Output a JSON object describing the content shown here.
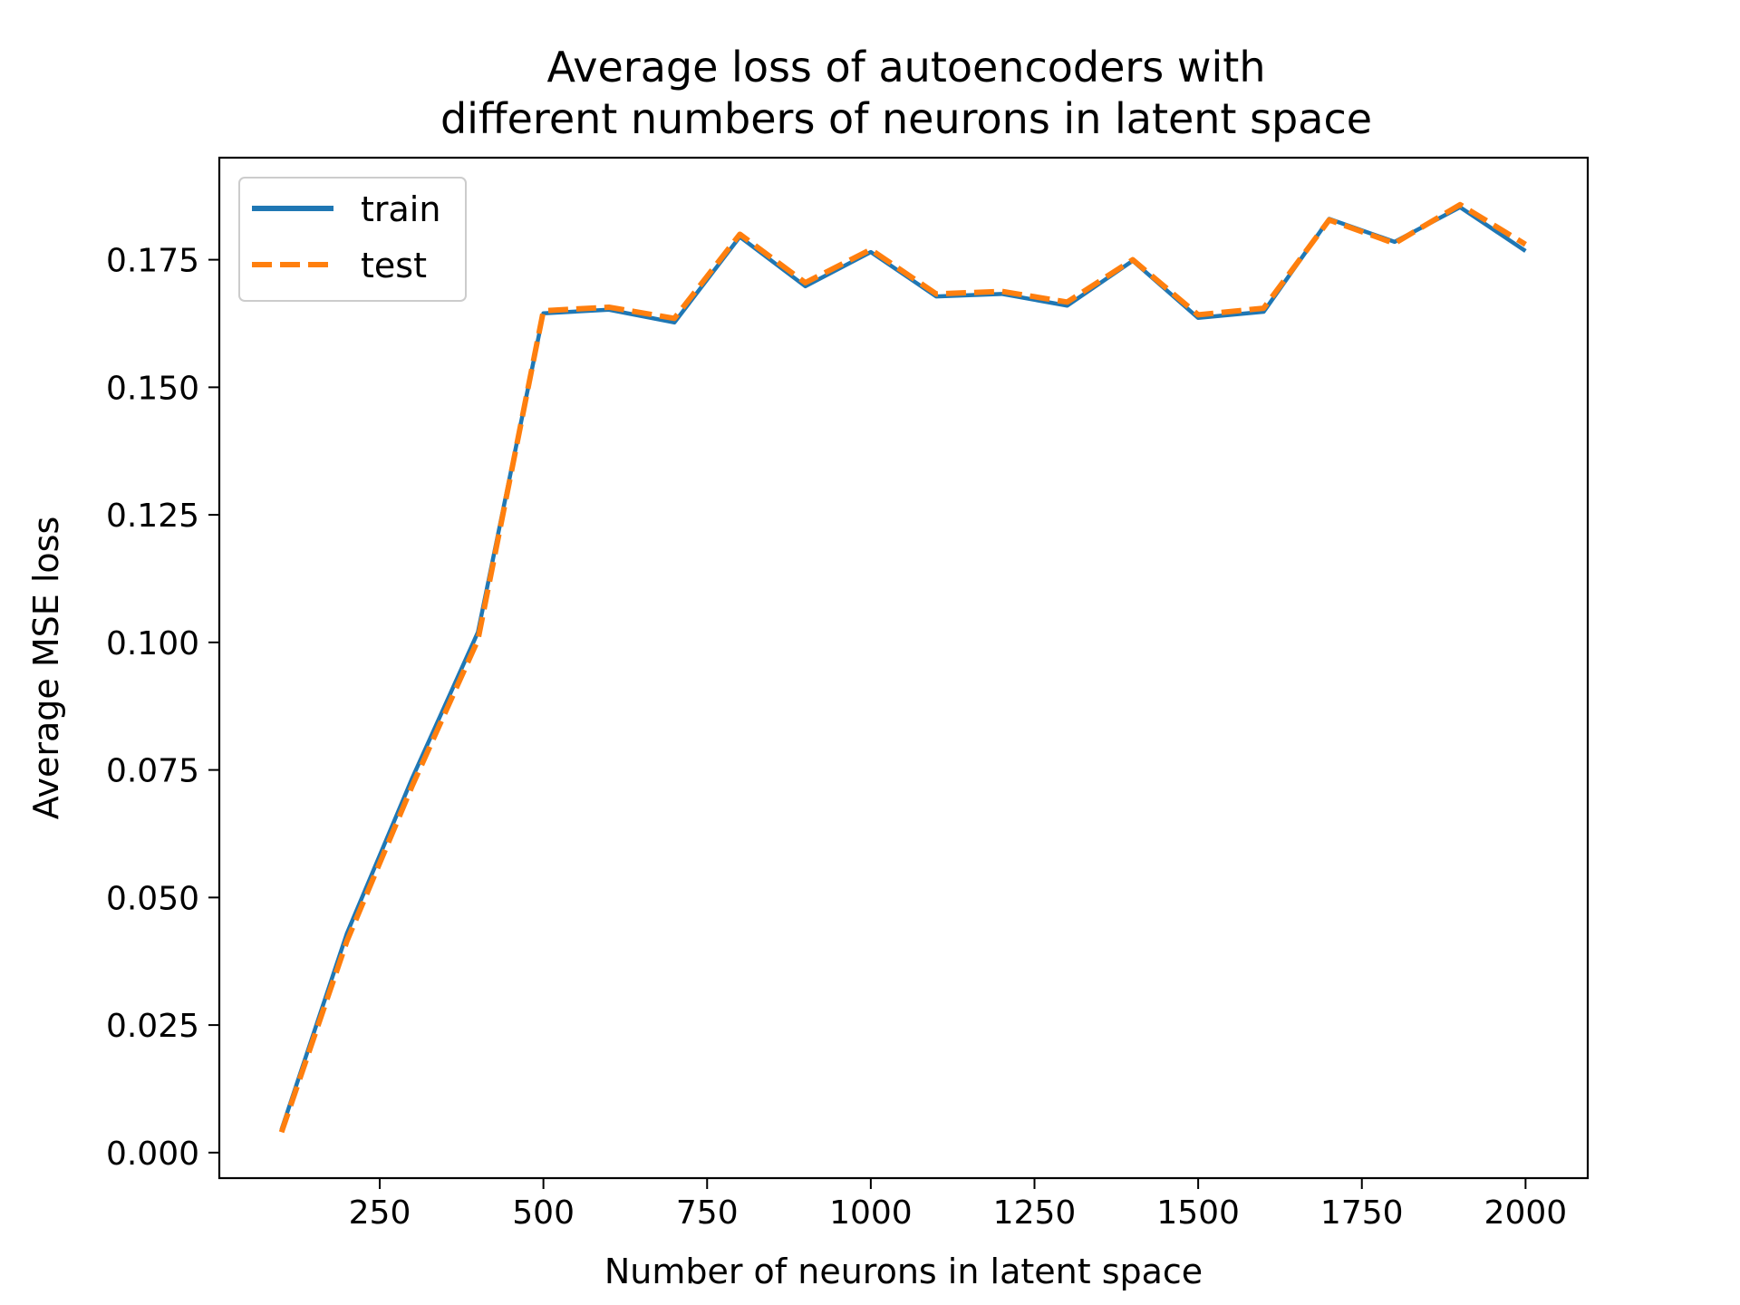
{
  "colors": {
    "train": "#1f77b4",
    "test": "#ff7f0e"
  },
  "chart_data": {
    "type": "line",
    "title": [
      "Average loss of autoencoders with",
      "different numbers of neurons in latent space"
    ],
    "xlabel": "Number of neurons in latent space",
    "ylabel": "Average MSE loss",
    "xlim": [
      5,
      2095
    ],
    "ylim": [
      -0.005,
      0.195
    ],
    "x_ticks": [
      250,
      500,
      750,
      1000,
      1250,
      1500,
      1750,
      2000
    ],
    "x_tick_labels": [
      "250",
      "500",
      "750",
      "1000",
      "1250",
      "1500",
      "1750",
      "2000"
    ],
    "y_ticks": [
      0.0,
      0.025,
      0.05,
      0.075,
      0.1,
      0.125,
      0.15,
      0.175
    ],
    "y_tick_labels": [
      "0.000",
      "0.025",
      "0.050",
      "0.075",
      "0.100",
      "0.125",
      "0.150",
      "0.175"
    ],
    "legend_position": "top-left",
    "x": [
      100,
      200,
      300,
      400,
      500,
      600,
      700,
      800,
      900,
      1000,
      1100,
      1200,
      1300,
      1400,
      1500,
      1600,
      1700,
      1800,
      1900,
      2000
    ],
    "series": [
      {
        "name": "train",
        "style": "solid",
        "values": [
          0.0045,
          0.043,
          0.0735,
          0.102,
          0.1645,
          0.1652,
          0.1627,
          0.1795,
          0.1698,
          0.1765,
          0.1678,
          0.1683,
          0.166,
          0.1748,
          0.1636,
          0.1648,
          0.183,
          0.1785,
          0.1853,
          0.1767
        ]
      },
      {
        "name": "test",
        "style": "dashed",
        "values": [
          0.004,
          0.0415,
          0.072,
          0.1005,
          0.165,
          0.1657,
          0.1635,
          0.18,
          0.1705,
          0.177,
          0.1683,
          0.1688,
          0.1667,
          0.175,
          0.1642,
          0.1655,
          0.1828,
          0.1782,
          0.1858,
          0.178
        ]
      }
    ]
  }
}
